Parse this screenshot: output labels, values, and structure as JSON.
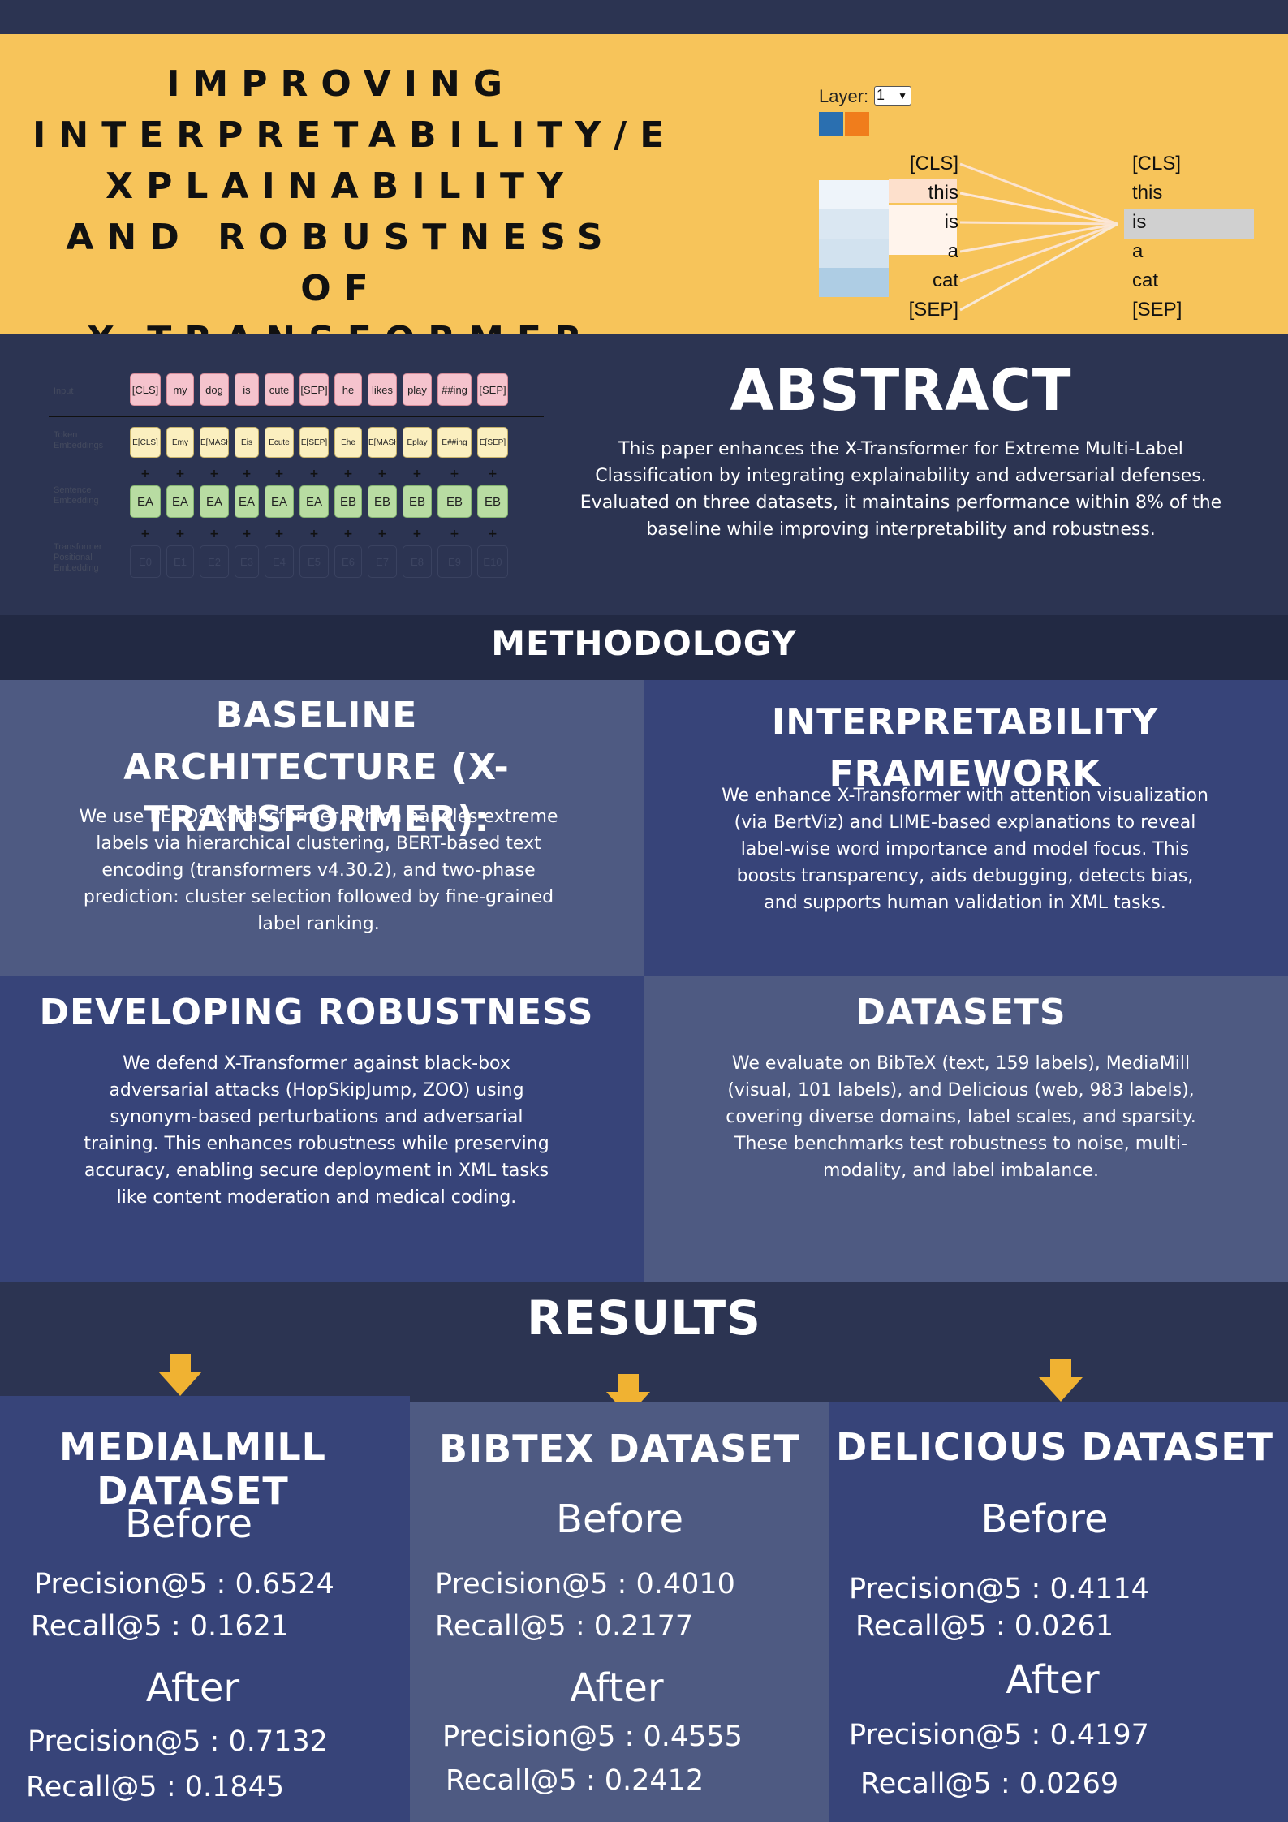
{
  "header": {
    "title_lines": [
      "IMPROVING",
      "INTERPRETABILITY/E",
      "XPLAINABILITY",
      "AND ROBUSTNESS OF",
      "X-TRANSFORMER"
    ],
    "bertviz": {
      "layer_label": "Layer:",
      "layer_value": "1",
      "head_colors": [
        "#2a6fb0",
        "#f07d1c"
      ],
      "left_tokens": [
        "[CLS]",
        "this",
        "is",
        "a",
        "cat",
        "[SEP]"
      ],
      "right_tokens": [
        "[CLS]",
        "this",
        "is",
        "a",
        "cat",
        "[SEP]"
      ],
      "selected_token": "is"
    }
  },
  "embedding_figure": {
    "row_labels": [
      "Input",
      "Token Embeddings",
      "Sentence Embedding",
      "Transformer Positional Embedding"
    ],
    "input_tokens": [
      "[CLS]",
      "my",
      "dog",
      "is",
      "cute",
      "[SEP]",
      "he",
      "likes",
      "play",
      "##ing",
      "[SEP]"
    ],
    "token_embeddings": [
      "E[CLS]",
      "Emy",
      "E[MASK]",
      "Eis",
      "Ecute",
      "E[SEP]",
      "Ehe",
      "E[MASK]",
      "Eplay",
      "E##ing",
      "E[SEP]"
    ],
    "sentence_embeddings": [
      "EA",
      "EA",
      "EA",
      "EA",
      "EA",
      "EA",
      "EB",
      "EB",
      "EB",
      "EB",
      "EB"
    ],
    "positional_embeddings": [
      "E0",
      "E1",
      "E2",
      "E3",
      "E4",
      "E5",
      "E6",
      "E7",
      "E8",
      "E9",
      "E10"
    ],
    "plus": "+"
  },
  "abstract": {
    "title": "ABSTRACT",
    "text": "This paper enhances the X-Transformer for Extreme Multi-Label Classification by integrating explainability and adversarial defenses. Evaluated on three datasets, it maintains performance within 8% of the baseline while improving interpretability and robustness."
  },
  "methodology": {
    "title": "METHODOLOGY",
    "panels": [
      {
        "heading": "BASELINE ARCHITECTURE (X-TRANSFORMER):",
        "text": "We use PECOS X-Transformer, which handles extreme labels via hierarchical clustering, BERT-based text encoding (transformers v4.30.2), and two-phase prediction: cluster selection followed by fine-grained label ranking."
      },
      {
        "heading": "INTERPRETABILITY FRAMEWORK",
        "text": "We enhance X-Transformer with attention visualization (via BertViz) and LIME-based explanations to reveal label-wise word importance and model focus. This boosts transparency, aids debugging, detects bias, and supports human validation in XML tasks."
      },
      {
        "heading": "DEVELOPING ROBUSTNESS",
        "text": "We defend X-Transformer against black-box adversarial attacks (HopSkipJump, ZOO) using synonym-based perturbations and adversarial training. This enhances robustness while preserving accuracy, enabling secure deployment in XML tasks like content moderation and medical coding."
      },
      {
        "heading": "DATASETS",
        "text": "We evaluate on BibTeX (text, 159 labels), MediaMill (visual, 101 labels), and Delicious (web, 983 labels), covering diverse domains, label scales, and sparsity. These benchmarks test robustness to noise, multi-modality, and label imbalance."
      }
    ]
  },
  "results": {
    "title": "RESULTS",
    "accent": "#f0b232",
    "columns": [
      {
        "heading": "MEDIALMILL DATASET",
        "before_label": "Before",
        "before_precision": "Precision@5 : 0.6524",
        "before_recall": "Recall@5 : 0.1621",
        "after_label": "After",
        "after_precision": "Precision@5 : 0.7132",
        "after_recall": "Recall@5 : 0.1845"
      },
      {
        "heading": "BIBTEX DATASET",
        "before_label": "Before",
        "before_precision": "Precision@5 : 0.4010",
        "before_recall": "Recall@5 : 0.2177",
        "after_label": "After",
        "after_precision": "Precision@5 : 0.4555",
        "after_recall": "Recall@5 : 0.2412"
      },
      {
        "heading": "DELICIOUS DATASET",
        "before_label": "Before",
        "before_precision": "Precision@5 : 0.4114",
        "before_recall": "Recall@5 : 0.0261",
        "after_label": "After",
        "after_precision": "Precision@5 : 0.4197",
        "after_recall": "Recall@5 :  0.0269"
      }
    ]
  }
}
